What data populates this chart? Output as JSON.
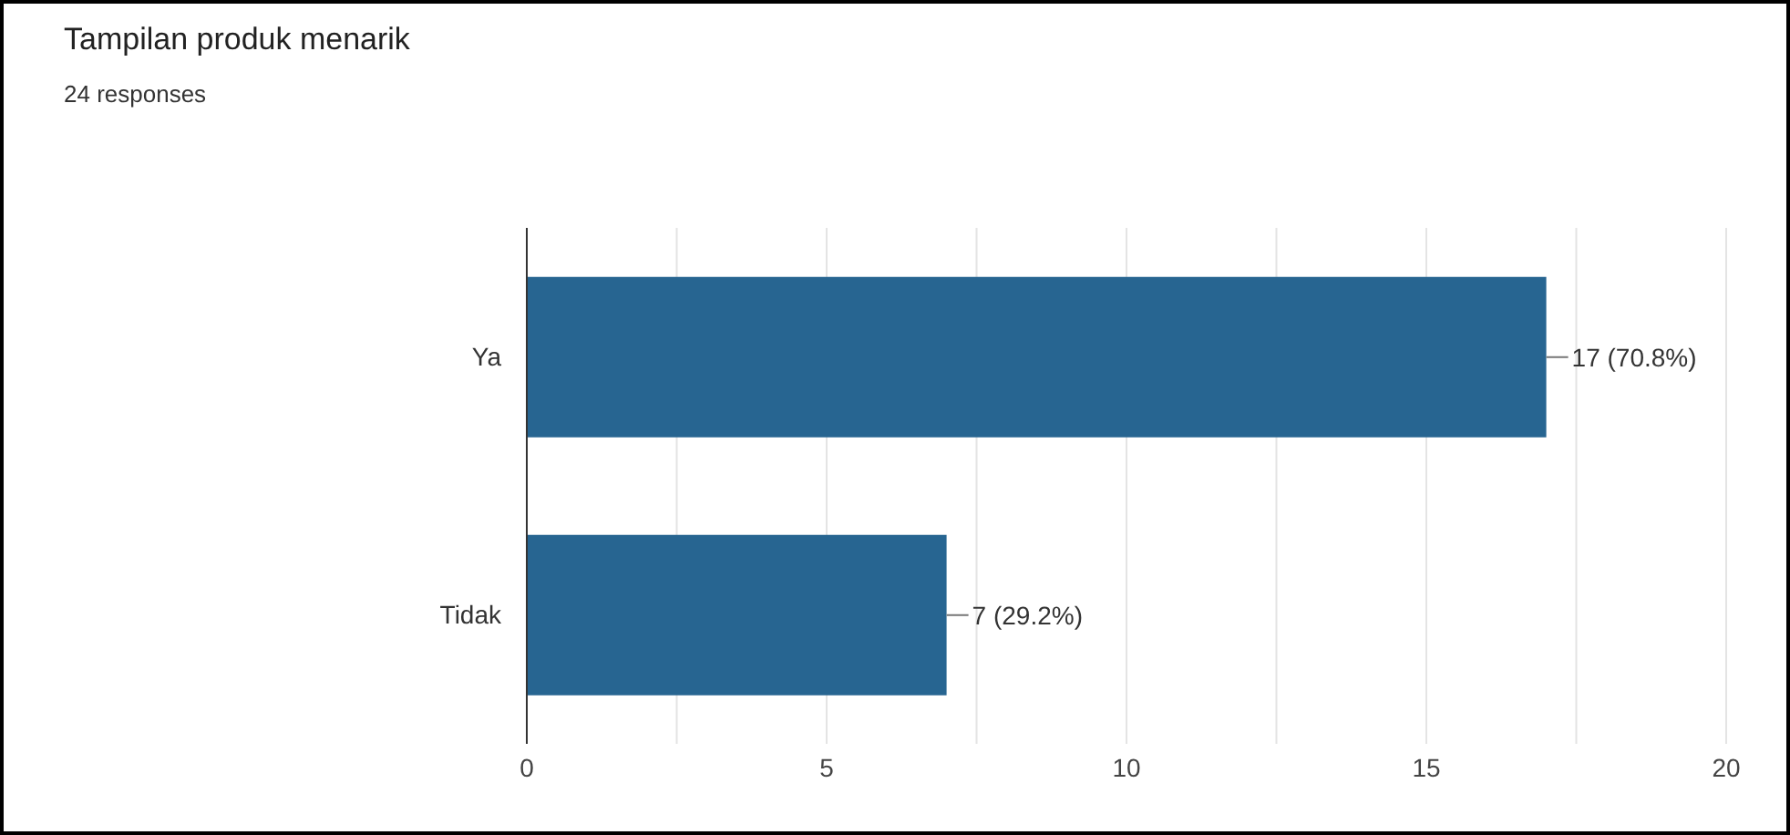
{
  "chart_data": {
    "type": "bar",
    "orientation": "horizontal",
    "title": "Tampilan produk menarik",
    "subtitle": "24 responses",
    "categories": [
      "Ya",
      "Tidak"
    ],
    "series": [
      {
        "color": "#276591",
        "values": [
          17,
          7
        ],
        "value_labels": [
          "17 (70.8%)",
          "7 (29.2%)"
        ]
      }
    ],
    "xlim": [
      0,
      20
    ],
    "xticks": [
      0,
      {
        "value": 2.5,
        "label": null
      },
      5,
      {
        "value": 7.5,
        "label": null
      },
      10,
      {
        "value": 12.5,
        "label": null
      },
      15,
      {
        "value": 17.5,
        "label": null
      },
      20
    ],
    "grid": "x",
    "legend": false
  }
}
